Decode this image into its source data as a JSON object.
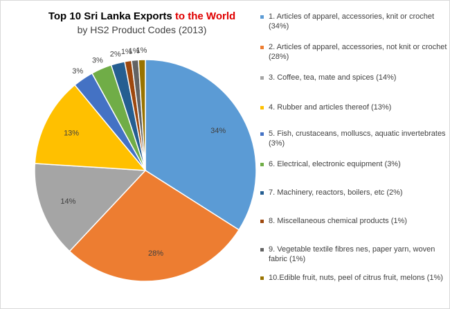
{
  "title": {
    "line1_prefix": "Top 10 Sri Lanka Exports ",
    "line1_highlight": "to the World",
    "line2": "by HS2 Product Codes (2013)"
  },
  "chart_data": {
    "type": "pie",
    "title": "Top 10 Sri Lanka Exports to the World by HS2 Product Codes (2013)",
    "categories": [
      "Articles of apparel, accessories, knit or crochet",
      "Articles of apparel, accessories, not knit or crochet",
      "Coffee, tea, mate and spices",
      "Rubber and articles thereof",
      "Fish, crustaceans, molluscs, aquatic invertebrates",
      "Electrical, electronic equipment",
      "Machinery, reactors, boilers, etc",
      "Miscellaneous chemical products",
      "Vegetable textile fibres nes, paper yarn, woven fabric",
      "Edible fruit, nuts, peel of citrus fruit, melons"
    ],
    "values": [
      34,
      28,
      14,
      13,
      3,
      3,
      2,
      1,
      1,
      1
    ],
    "data_labels": [
      "34%",
      "28%",
      "14%",
      "13%",
      "3%",
      "3%",
      "2%",
      "1%",
      "1%",
      "1%"
    ],
    "colors": [
      "#5b9bd5",
      "#ed7d31",
      "#a5a5a5",
      "#ffc000",
      "#4472c4",
      "#70ad47",
      "#255e91",
      "#9e480e",
      "#636363",
      "#997300"
    ],
    "legend_position": "right",
    "legend": [
      "1. Articles of apparel, accessories, knit or crochet (34%)",
      "2. Articles of apparel, accessories, not knit or crochet (28%)",
      "3. Coffee, tea, mate and spices (14%)",
      "4. Rubber and articles thereof (13%)",
      "5. Fish, crustaceans, molluscs, aquatic invertebrates (3%)",
      "6. Electrical, electronic equipment (3%)",
      "7. Machinery, reactors, boilers, etc (2%)",
      "8. Miscellaneous chemical products (1%)",
      "9. Vegetable textile fibres nes, paper yarn, woven fabric (1%)",
      "10.Edible fruit, nuts, peel of citrus fruit, melons (1%)"
    ]
  }
}
